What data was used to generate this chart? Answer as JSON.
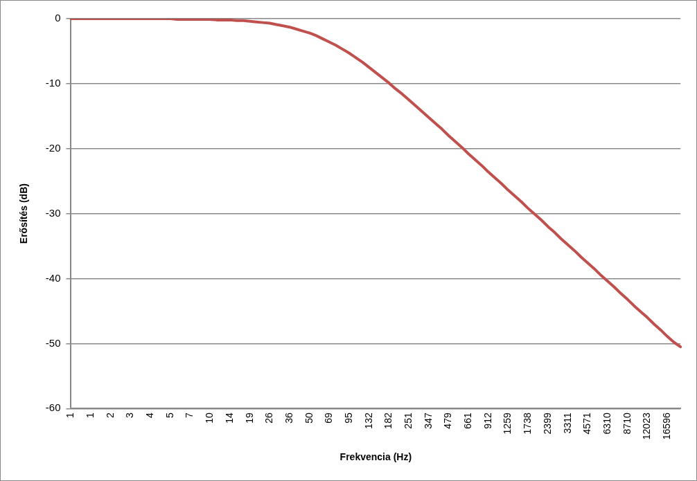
{
  "chart_data": {
    "type": "line",
    "xlabel": "Frekvencia (Hz)",
    "ylabel": "Erősítés (dB)",
    "categories": [
      "1",
      null,
      null,
      "1",
      null,
      null,
      "2",
      null,
      null,
      "3",
      null,
      null,
      "4",
      null,
      null,
      "5",
      null,
      null,
      "7",
      null,
      null,
      "10",
      null,
      null,
      "14",
      null,
      null,
      "19",
      null,
      null,
      "26",
      null,
      null,
      "36",
      null,
      null,
      "50",
      null,
      null,
      "69",
      null,
      null,
      "95",
      null,
      null,
      "132",
      null,
      null,
      "182",
      null,
      null,
      "251",
      null,
      null,
      "347",
      null,
      null,
      "479",
      null,
      null,
      "661",
      null,
      null,
      "912",
      null,
      null,
      "1259",
      null,
      null,
      "1738",
      null,
      null,
      "2399",
      null,
      null,
      "3311",
      null,
      null,
      "4571",
      null,
      null,
      "6310",
      null,
      null,
      "8710",
      null,
      null,
      "12023",
      null,
      null,
      "16596",
      null,
      null
    ],
    "series": [
      {
        "color": "#c0504d",
        "values": [
          0,
          0,
          0,
          0,
          0,
          0,
          0,
          0,
          0,
          0,
          0,
          0,
          0,
          0,
          0,
          0,
          -0.1,
          -0.1,
          -0.1,
          -0.1,
          -0.1,
          -0.1,
          -0.2,
          -0.2,
          -0.2,
          -0.3,
          -0.3,
          -0.4,
          -0.5,
          -0.6,
          -0.7,
          -0.9,
          -1.1,
          -1.3,
          -1.6,
          -1.9,
          -2.2,
          -2.6,
          -3.1,
          -3.6,
          -4.1,
          -4.7,
          -5.3,
          -6.0,
          -6.7,
          -7.5,
          -8.3,
          -9.1,
          -9.9,
          -10.8,
          -11.6,
          -12.5,
          -13.4,
          -14.3,
          -15.2,
          -16.1,
          -17.0,
          -18.0,
          -18.9,
          -19.8,
          -20.8,
          -21.7,
          -22.6,
          -23.6,
          -24.5,
          -25.4,
          -26.4,
          -27.3,
          -28.2,
          -29.2,
          -30.1,
          -31.0,
          -32.0,
          -32.9,
          -33.9,
          -34.8,
          -35.7,
          -36.7,
          -37.6,
          -38.5,
          -39.5,
          -40.4,
          -41.3,
          -42.3,
          -43.2,
          -44.2,
          -45.1,
          -46.0,
          -47.0,
          -47.9,
          -48.9,
          -49.8,
          -50.5
        ]
      }
    ],
    "ylim": [
      -60,
      0
    ],
    "yticks": [
      -60,
      -50,
      -40,
      -30,
      -20,
      -10,
      0
    ],
    "grid": "y",
    "legend": false,
    "marker": "none",
    "line_style": "solid"
  }
}
